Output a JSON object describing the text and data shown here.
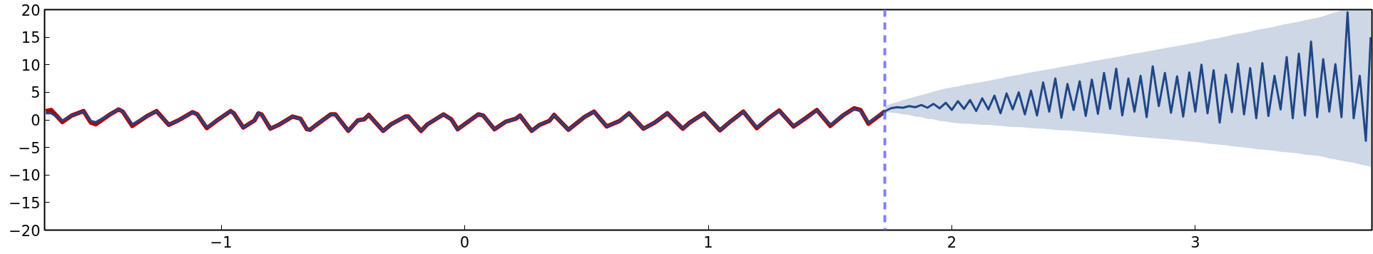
{
  "chart_data": {
    "type": "line",
    "xlim": [
      -1.725,
      3.725
    ],
    "ylim": [
      -20,
      20
    ],
    "xticks": [
      {
        "value": -1,
        "label": "−1"
      },
      0,
      1,
      2,
      3
    ],
    "yticks": [
      {
        "value": -20,
        "label": "−20"
      },
      {
        "value": -15,
        "label": "−15"
      },
      {
        "value": -10,
        "label": "−10"
      },
      {
        "value": -5,
        "label": "−5"
      },
      0,
      5,
      10,
      15,
      20
    ],
    "grid": false,
    "line_style": "solid",
    "ref_lines": [
      {
        "axis": "x",
        "value": 1.725,
        "label": null,
        "color": "#8080ff",
        "line_style": "dashed"
      }
    ],
    "series": [
      {
        "color": "#b00000",
        "x": [
          -1.72,
          -1.698,
          -1.652,
          -1.613,
          -1.565,
          -1.535,
          -1.515,
          -1.456,
          -1.421,
          -1.404,
          -1.365,
          -1.3,
          -1.265,
          -1.215,
          -1.176,
          -1.117,
          -1.098,
          -1.059,
          -1.02,
          -0.987,
          -0.961,
          -0.948,
          -0.909,
          -0.863,
          -0.847,
          -0.834,
          -0.798,
          -0.759,
          -0.707,
          -0.674,
          -0.648,
          -0.635,
          -0.615,
          -0.55,
          -0.531,
          -0.478,
          -0.439,
          -0.413,
          -0.394,
          -0.335,
          -0.302,
          -0.244,
          -0.231,
          -0.179,
          -0.153,
          -0.087,
          -0.055,
          -0.029,
          0.056,
          0.076,
          0.122,
          0.17,
          0.21,
          0.227,
          0.275,
          0.308,
          0.347,
          0.367,
          0.426,
          0.491,
          0.531,
          0.583,
          0.636,
          0.675,
          0.734,
          0.78,
          0.832,
          0.895,
          0.924,
          0.983,
          1.048,
          1.094,
          1.144,
          1.199,
          1.245,
          1.291,
          1.35,
          1.396,
          1.446,
          1.501,
          1.553,
          1.599,
          1.625,
          1.658,
          1.727
        ],
        "values": [
          1.6,
          1.8,
          -0.4,
          0.8,
          1.6,
          -0.5,
          -0.8,
          1.0,
          1.9,
          1.5,
          -1.1,
          0.8,
          1.6,
          -0.9,
          -0.1,
          1.4,
          1.0,
          -1.5,
          -0.2,
          0.8,
          1.6,
          1.2,
          -1.4,
          -0.1,
          1.2,
          1.0,
          -1.6,
          -0.8,
          0.6,
          0.2,
          -1.7,
          -1.8,
          -1.1,
          1.0,
          1.0,
          -2.0,
          -0.1,
          0.1,
          0.9,
          -2.0,
          -0.8,
          0.6,
          0.6,
          -2.0,
          -0.8,
          1.0,
          0.1,
          -1.7,
          1.0,
          0.8,
          -1.7,
          -0.3,
          0.2,
          0.8,
          -2.0,
          -0.9,
          -0.2,
          0.9,
          -1.8,
          0.5,
          1.5,
          -1.2,
          -0.2,
          1.2,
          -1.6,
          -0.5,
          1.2,
          -1.6,
          -0.5,
          1.2,
          -1.9,
          -0.2,
          1.5,
          -1.5,
          0.2,
          1.7,
          -1.2,
          0.2,
          1.8,
          -1.1,
          0.8,
          2.1,
          1.8,
          -0.7,
          1.6
        ]
      },
      {
        "color": "#1f4788",
        "x": [
          -1.72,
          -1.698,
          -1.652,
          -1.613,
          -1.565,
          -1.535,
          -1.515,
          -1.456,
          -1.421,
          -1.404,
          -1.365,
          -1.3,
          -1.265,
          -1.215,
          -1.176,
          -1.117,
          -1.098,
          -1.059,
          -1.02,
          -0.987,
          -0.961,
          -0.948,
          -0.909,
          -0.863,
          -0.847,
          -0.834,
          -0.798,
          -0.759,
          -0.707,
          -0.674,
          -0.648,
          -0.635,
          -0.615,
          -0.55,
          -0.531,
          -0.478,
          -0.439,
          -0.413,
          -0.394,
          -0.335,
          -0.302,
          -0.244,
          -0.231,
          -0.179,
          -0.153,
          -0.087,
          -0.055,
          -0.029,
          0.056,
          0.076,
          0.122,
          0.17,
          0.21,
          0.227,
          0.275,
          0.308,
          0.347,
          0.367,
          0.426,
          0.491,
          0.531,
          0.583,
          0.636,
          0.675,
          0.734,
          0.78,
          0.832,
          0.895,
          0.924,
          0.983,
          1.048,
          1.094,
          1.144,
          1.199,
          1.245,
          1.291,
          1.35,
          1.396,
          1.446,
          1.501,
          1.553,
          1.599,
          1.625,
          1.658,
          1.727,
          1.75,
          1.775,
          1.8,
          1.825,
          1.85,
          1.875,
          1.9,
          1.925,
          1.95,
          1.975,
          2.0,
          2.025,
          2.05,
          2.075,
          2.1,
          2.125,
          2.15,
          2.175,
          2.2,
          2.225,
          2.25,
          2.275,
          2.3,
          2.325,
          2.35,
          2.375,
          2.4,
          2.425,
          2.45,
          2.475,
          2.5,
          2.525,
          2.55,
          2.575,
          2.6,
          2.625,
          2.65,
          2.675,
          2.7,
          2.725,
          2.75,
          2.775,
          2.8,
          2.825,
          2.85,
          2.875,
          2.9,
          2.925,
          2.95,
          2.975,
          3.0,
          3.025,
          3.05,
          3.075,
          3.1,
          3.125,
          3.15,
          3.175,
          3.2,
          3.225,
          3.25,
          3.275,
          3.3,
          3.325,
          3.35,
          3.375,
          3.4,
          3.425,
          3.45,
          3.475,
          3.5,
          3.525,
          3.55,
          3.575,
          3.6,
          3.625,
          3.65,
          3.675,
          3.7,
          3.72
        ],
        "values": [
          1.2,
          1.2,
          -0.1,
          0.8,
          1.6,
          -0.2,
          -0.4,
          1.0,
          1.9,
          1.5,
          -0.8,
          0.8,
          1.6,
          -0.9,
          -0.1,
          1.4,
          1.0,
          -1.3,
          -0.2,
          0.8,
          1.6,
          1.2,
          -1.4,
          -0.1,
          1.2,
          1.0,
          -1.6,
          -0.8,
          0.6,
          0.2,
          -1.7,
          -1.8,
          -1.1,
          1.0,
          1.0,
          -2.0,
          -0.1,
          0.1,
          0.9,
          -2.0,
          -0.8,
          0.6,
          0.6,
          -2.0,
          -0.8,
          1.0,
          0.1,
          -1.7,
          1.0,
          0.8,
          -1.7,
          -0.3,
          0.2,
          0.8,
          -2.0,
          -0.9,
          -0.2,
          0.9,
          -1.8,
          0.5,
          1.5,
          -1.2,
          -0.2,
          1.2,
          -1.6,
          -0.5,
          1.2,
          -1.6,
          -0.5,
          1.2,
          -1.8,
          -0.2,
          1.4,
          -1.3,
          0.2,
          1.6,
          -1.1,
          0.2,
          1.7,
          -0.9,
          0.8,
          2.0,
          1.6,
          -0.5,
          1.6,
          2.1,
          2.3,
          2.2,
          2.5,
          2.3,
          2.7,
          2.2,
          2.9,
          2.1,
          3.1,
          1.8,
          3.4,
          2.0,
          3.6,
          1.6,
          3.9,
          1.9,
          4.4,
          1.2,
          4.8,
          1.9,
          5.0,
          1.0,
          5.3,
          0.8,
          6.8,
          1.5,
          7.5,
          0.4,
          6.5,
          1.8,
          7.0,
          0.7,
          7.3,
          1.1,
          8.5,
          2.0,
          9.3,
          0.8,
          7.5,
          1.5,
          8.0,
          0.5,
          9.7,
          2.5,
          8.5,
          1.3,
          7.9,
          0.6,
          8.6,
          1.5,
          10.0,
          1.2,
          9.0,
          -0.5,
          8.2,
          1.4,
          10.2,
          1.0,
          9.4,
          0.3,
          10.3,
          0.7,
          8.0,
          1.9,
          11.4,
          0.3,
          12.0,
          0.8,
          14.2,
          0.5,
          11.0,
          1.5,
          10.1,
          0.5,
          19.5,
          0.3,
          8.0,
          -3.8,
          15.0
        ],
        "lower": [
          null,
          null,
          null,
          null,
          null,
          null,
          null,
          null,
          null,
          null,
          null,
          null,
          null,
          null,
          null,
          null,
          null,
          null,
          null,
          null,
          null,
          null,
          null,
          null,
          null,
          null,
          null,
          null,
          null,
          null,
          null,
          null,
          null,
          null,
          null,
          null,
          null,
          null,
          null,
          null,
          null,
          null,
          null,
          null,
          null,
          null,
          null,
          null,
          null,
          null,
          null,
          null,
          null,
          null,
          null,
          null,
          null,
          null,
          null,
          null,
          null,
          null,
          null,
          null,
          null,
          null,
          null,
          null,
          null,
          null,
          null,
          null,
          null,
          null,
          null,
          null,
          null,
          null,
          null,
          null,
          null,
          null,
          null,
          null,
          1.5,
          1.3,
          1.2,
          1.0,
          0.9,
          0.6,
          0.5,
          0.2,
          0.1,
          -0.2,
          -0.3,
          -0.5,
          -0.6,
          -0.7,
          -0.7,
          -0.8,
          -0.9,
          -0.9,
          -1.0,
          -1.1,
          -1.2,
          -1.3,
          -1.3,
          -1.4,
          -1.5,
          -1.6,
          -1.6,
          -1.7,
          -1.8,
          -1.9,
          -1.9,
          -2.0,
          -2.1,
          -2.2,
          -2.3,
          -2.4,
          -2.5,
          -2.6,
          -2.7,
          -2.8,
          -2.9,
          -3.0,
          -3.1,
          -3.2,
          -3.3,
          -3.4,
          -3.5,
          -3.6,
          -3.7,
          -3.8,
          -3.9,
          -4.0,
          -4.1,
          -4.3,
          -4.4,
          -4.5,
          -4.6,
          -4.8,
          -4.9,
          -5.0,
          -5.1,
          -5.3,
          -5.4,
          -5.5,
          -5.6,
          -5.8,
          -5.9,
          -6.0,
          -6.1,
          -6.3,
          -6.4,
          -6.5,
          -6.7,
          -7.0,
          -7.2,
          -7.4,
          -7.6,
          -7.8,
          -8.1,
          -8.3,
          -8.5
        ],
        "upper": [
          null,
          null,
          null,
          null,
          null,
          null,
          null,
          null,
          null,
          null,
          null,
          null,
          null,
          null,
          null,
          null,
          null,
          null,
          null,
          null,
          null,
          null,
          null,
          null,
          null,
          null,
          null,
          null,
          null,
          null,
          null,
          null,
          null,
          null,
          null,
          null,
          null,
          null,
          null,
          null,
          null,
          null,
          null,
          null,
          null,
          null,
          null,
          null,
          null,
          null,
          null,
          null,
          null,
          null,
          null,
          null,
          null,
          null,
          null,
          null,
          null,
          null,
          null,
          null,
          null,
          null,
          null,
          null,
          null,
          null,
          null,
          null,
          null,
          null,
          null,
          null,
          null,
          null,
          null,
          null,
          null,
          null,
          null,
          null,
          2.5,
          2.9,
          3.2,
          3.6,
          3.9,
          4.2,
          4.5,
          4.8,
          5.1,
          5.4,
          5.7,
          5.9,
          6.1,
          6.3,
          6.5,
          6.7,
          6.9,
          7.1,
          7.3,
          7.5,
          7.8,
          8.0,
          8.2,
          8.4,
          8.6,
          8.8,
          9.0,
          9.2,
          9.4,
          9.6,
          9.8,
          10.0,
          10.2,
          10.4,
          10.6,
          10.8,
          11.0,
          11.2,
          11.4,
          11.6,
          11.8,
          12.0,
          12.2,
          12.4,
          12.6,
          12.8,
          13.0,
          13.2,
          13.4,
          13.6,
          13.8,
          14.0,
          14.2,
          14.5,
          14.7,
          14.9,
          15.1,
          15.4,
          15.6,
          15.8,
          16.0,
          16.3,
          16.5,
          16.7,
          16.9,
          17.2,
          17.4,
          17.6,
          17.8,
          18.1,
          18.3,
          18.5,
          18.8,
          19.2,
          19.5,
          19.9,
          20,
          20,
          20,
          20,
          20
        ]
      }
    ]
  }
}
